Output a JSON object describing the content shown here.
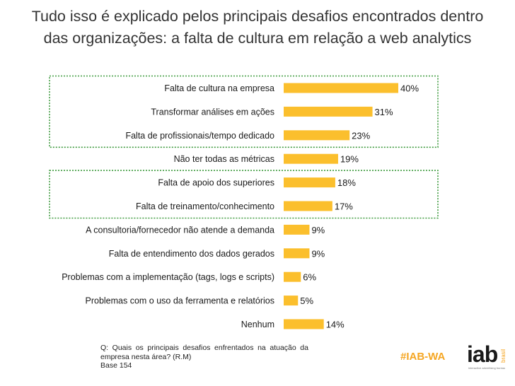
{
  "title": {
    "line1": "Tudo isso é explicado pelos principais desafios encontrados dentro",
    "line2": "das organizações: a falta de cultura em relação a web analytics"
  },
  "chart_data": {
    "type": "bar",
    "orientation": "horizontal",
    "categories": [
      "Falta de cultura na empresa",
      "Transformar análises em ações",
      "Falta de profissionais/tempo dedicado",
      "Não ter todas as métricas",
      "Falta de apoio dos superiores",
      "Falta de treinamento/conhecimento",
      "A consultoria/fornecedor não atende a demanda",
      "Falta de entendimento dos dados gerados",
      "Problemas com a implementação (tags, logs e scripts)",
      "Problemas com o uso da ferramenta e relatórios",
      "Nenhum"
    ],
    "values": [
      40,
      31,
      23,
      19,
      18,
      17,
      9,
      9,
      6,
      5,
      14
    ],
    "value_labels": [
      "40%",
      "31%",
      "23%",
      "19%",
      "18%",
      "17%",
      "9%",
      "9%",
      "6%",
      "5%",
      "14%"
    ],
    "unit": "%",
    "bar_color": "#fbbf2d",
    "highlight_box_color": "#3f9b3f",
    "highlight_groups": [
      [
        0,
        2
      ],
      [
        4,
        5
      ]
    ],
    "xlim": [
      0,
      45
    ]
  },
  "footnote": {
    "question": "Q: Quais os principais desafios enfrentados na atuação da empresa nesta área? (R.M)",
    "base": "Base 154"
  },
  "hashtag": "#IAB-WA",
  "logo": {
    "name": "iab",
    "country": "brasil",
    "tagline": "interactive advertising bureau",
    "accent_color": "#f5a623"
  }
}
